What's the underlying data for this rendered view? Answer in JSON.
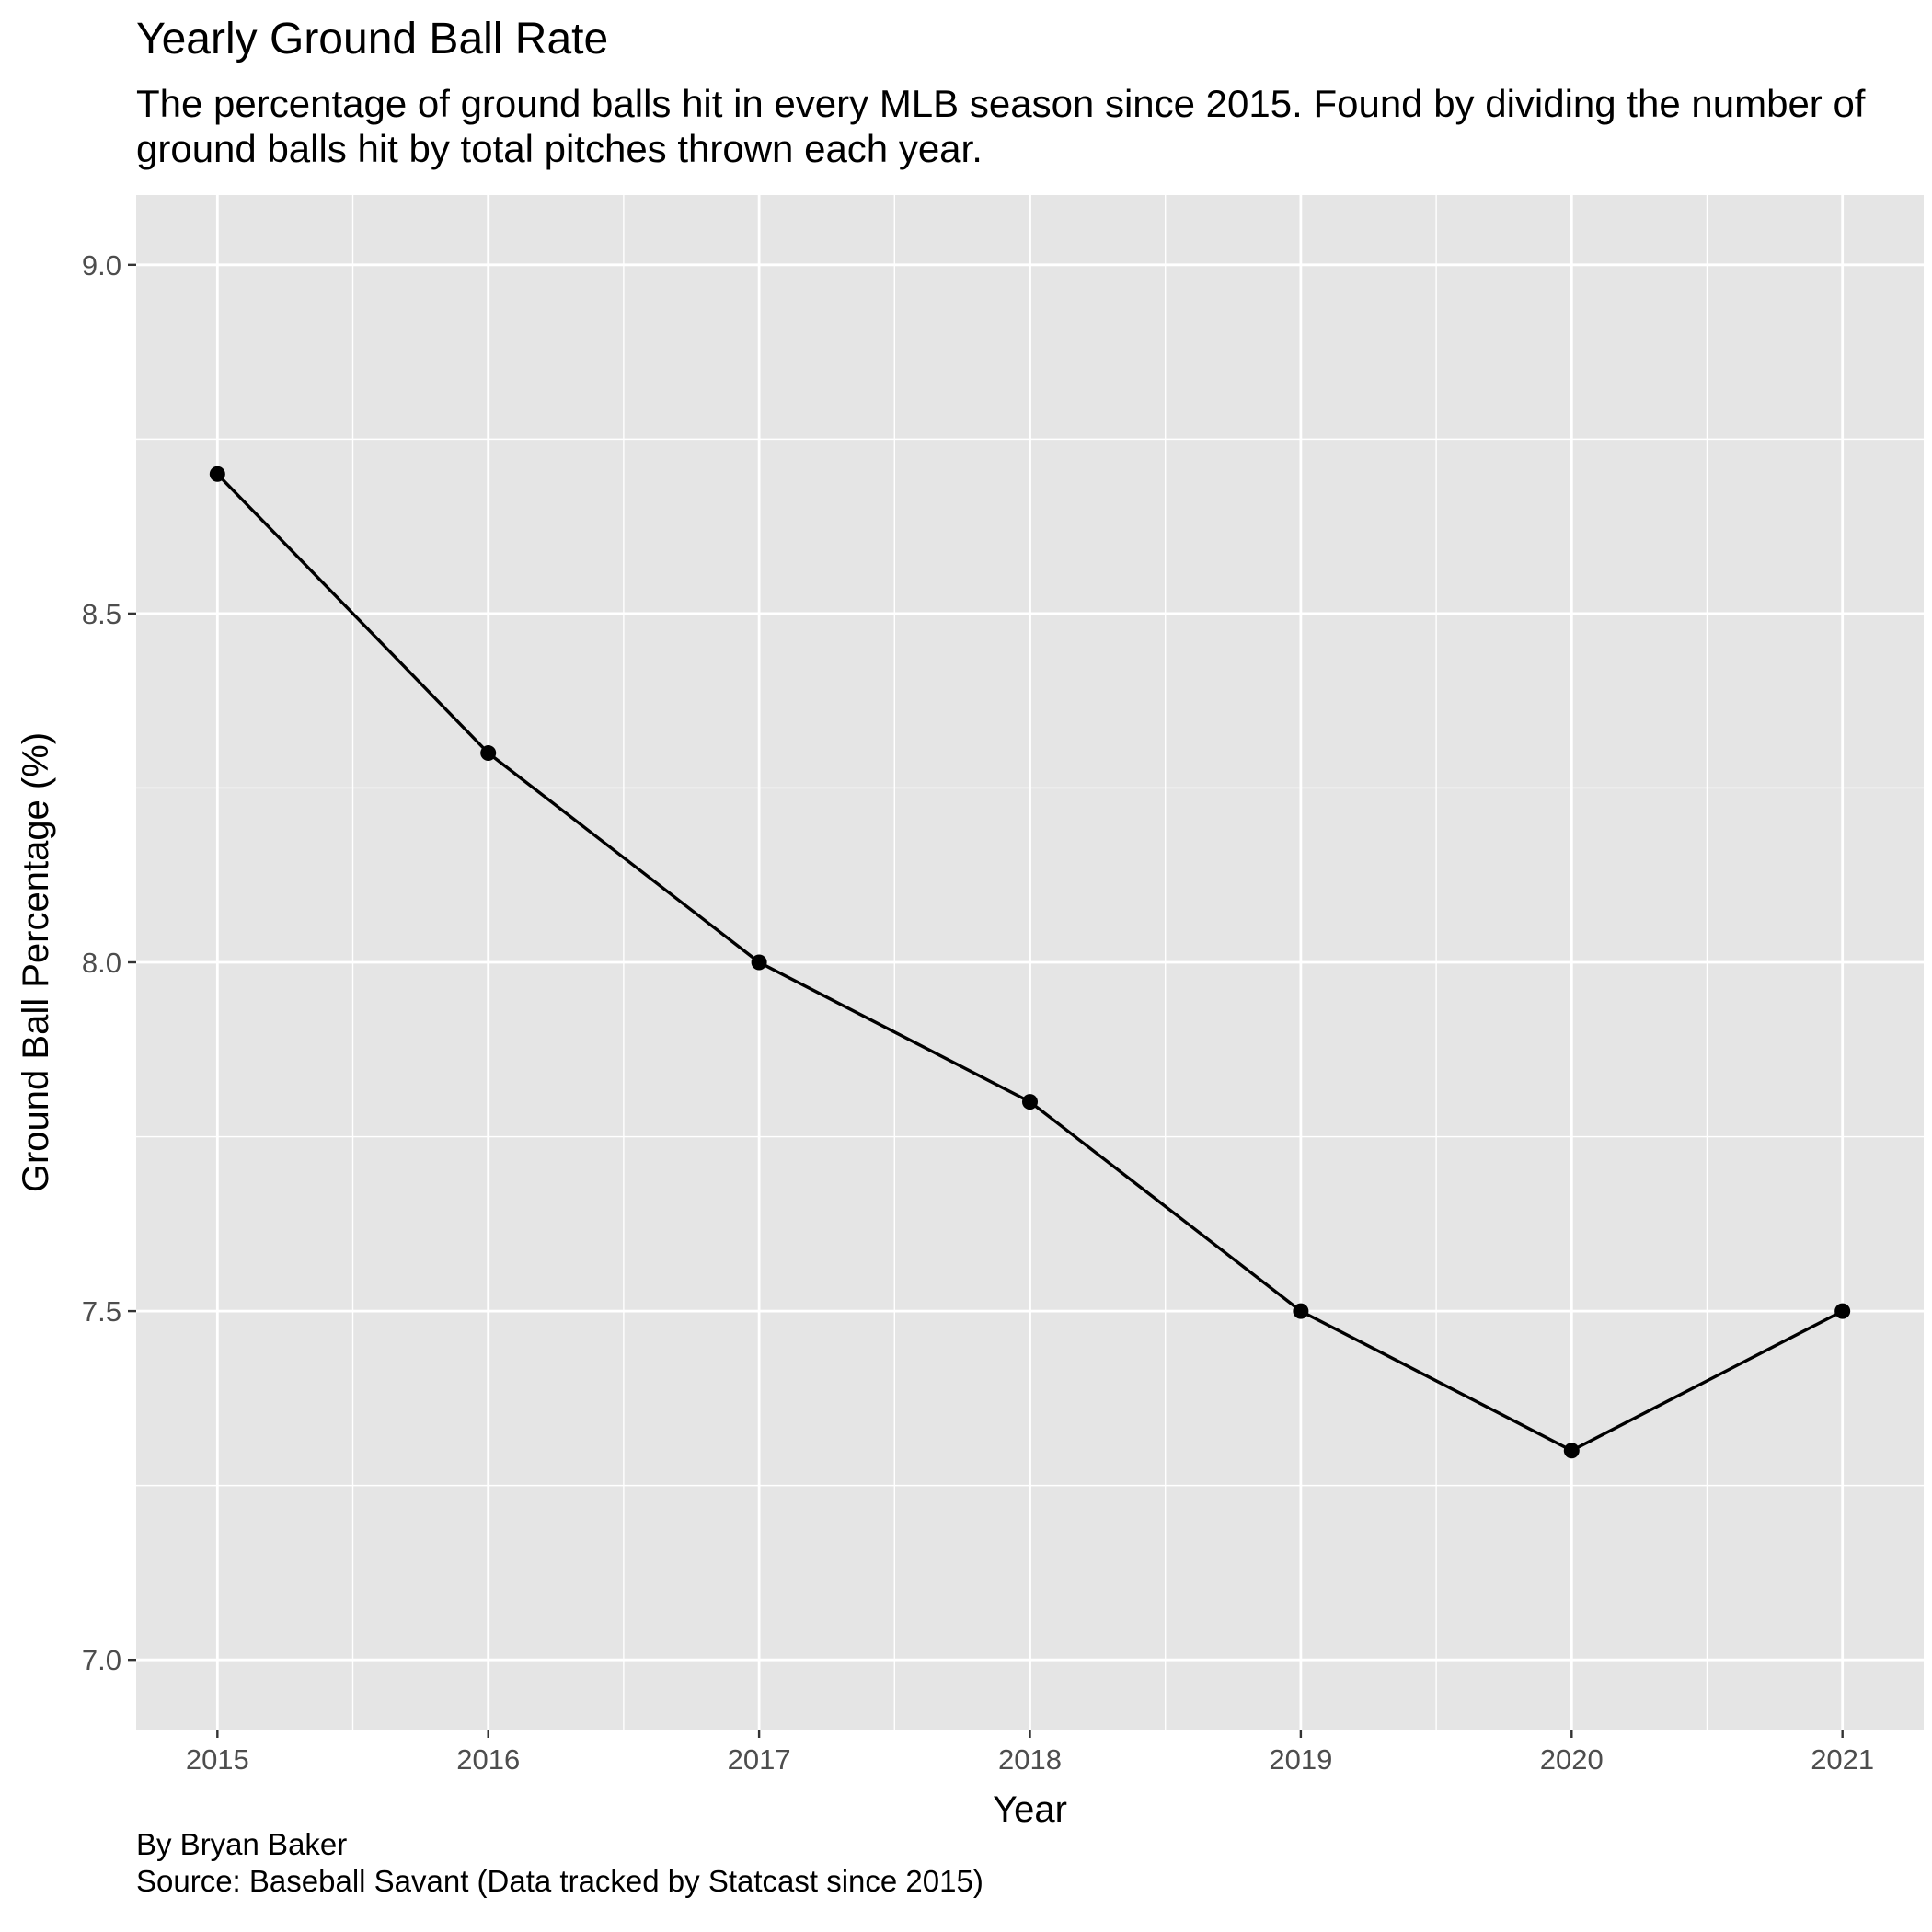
{
  "chart_data": {
    "type": "line",
    "title": "Yearly Ground Ball Rate",
    "subtitle": "The percentage of ground balls hit in every MLB season since 2015. Found by dividing the number of ground balls hit by total pitches thrown each year.",
    "xlabel": "Year",
    "ylabel": "Ground Ball Percentage (%)",
    "x": [
      2015,
      2016,
      2017,
      2018,
      2019,
      2020,
      2021
    ],
    "series": [
      {
        "name": "Ground Ball Percentage",
        "values": [
          8.7,
          8.3,
          8.0,
          7.8,
          7.5,
          7.3,
          7.5
        ]
      }
    ],
    "xlim": [
      2014.7,
      2021.3
    ],
    "ylim": [
      6.9,
      9.1
    ],
    "x_ticks": [
      "2015",
      "2016",
      "2017",
      "2018",
      "2019",
      "2020",
      "2021"
    ],
    "y_ticks": [
      "7.0",
      "7.5",
      "8.0",
      "8.5",
      "9.0"
    ],
    "grid": true,
    "caption": [
      "By Bryan Baker",
      "Source: Baseball Savant (Data tracked by Statcast since 2015)"
    ]
  },
  "colors": {
    "panel_background": "#e5e5e5",
    "grid_major": "#ffffff",
    "line": "#000000",
    "tick_label": "#4d4d4d"
  }
}
